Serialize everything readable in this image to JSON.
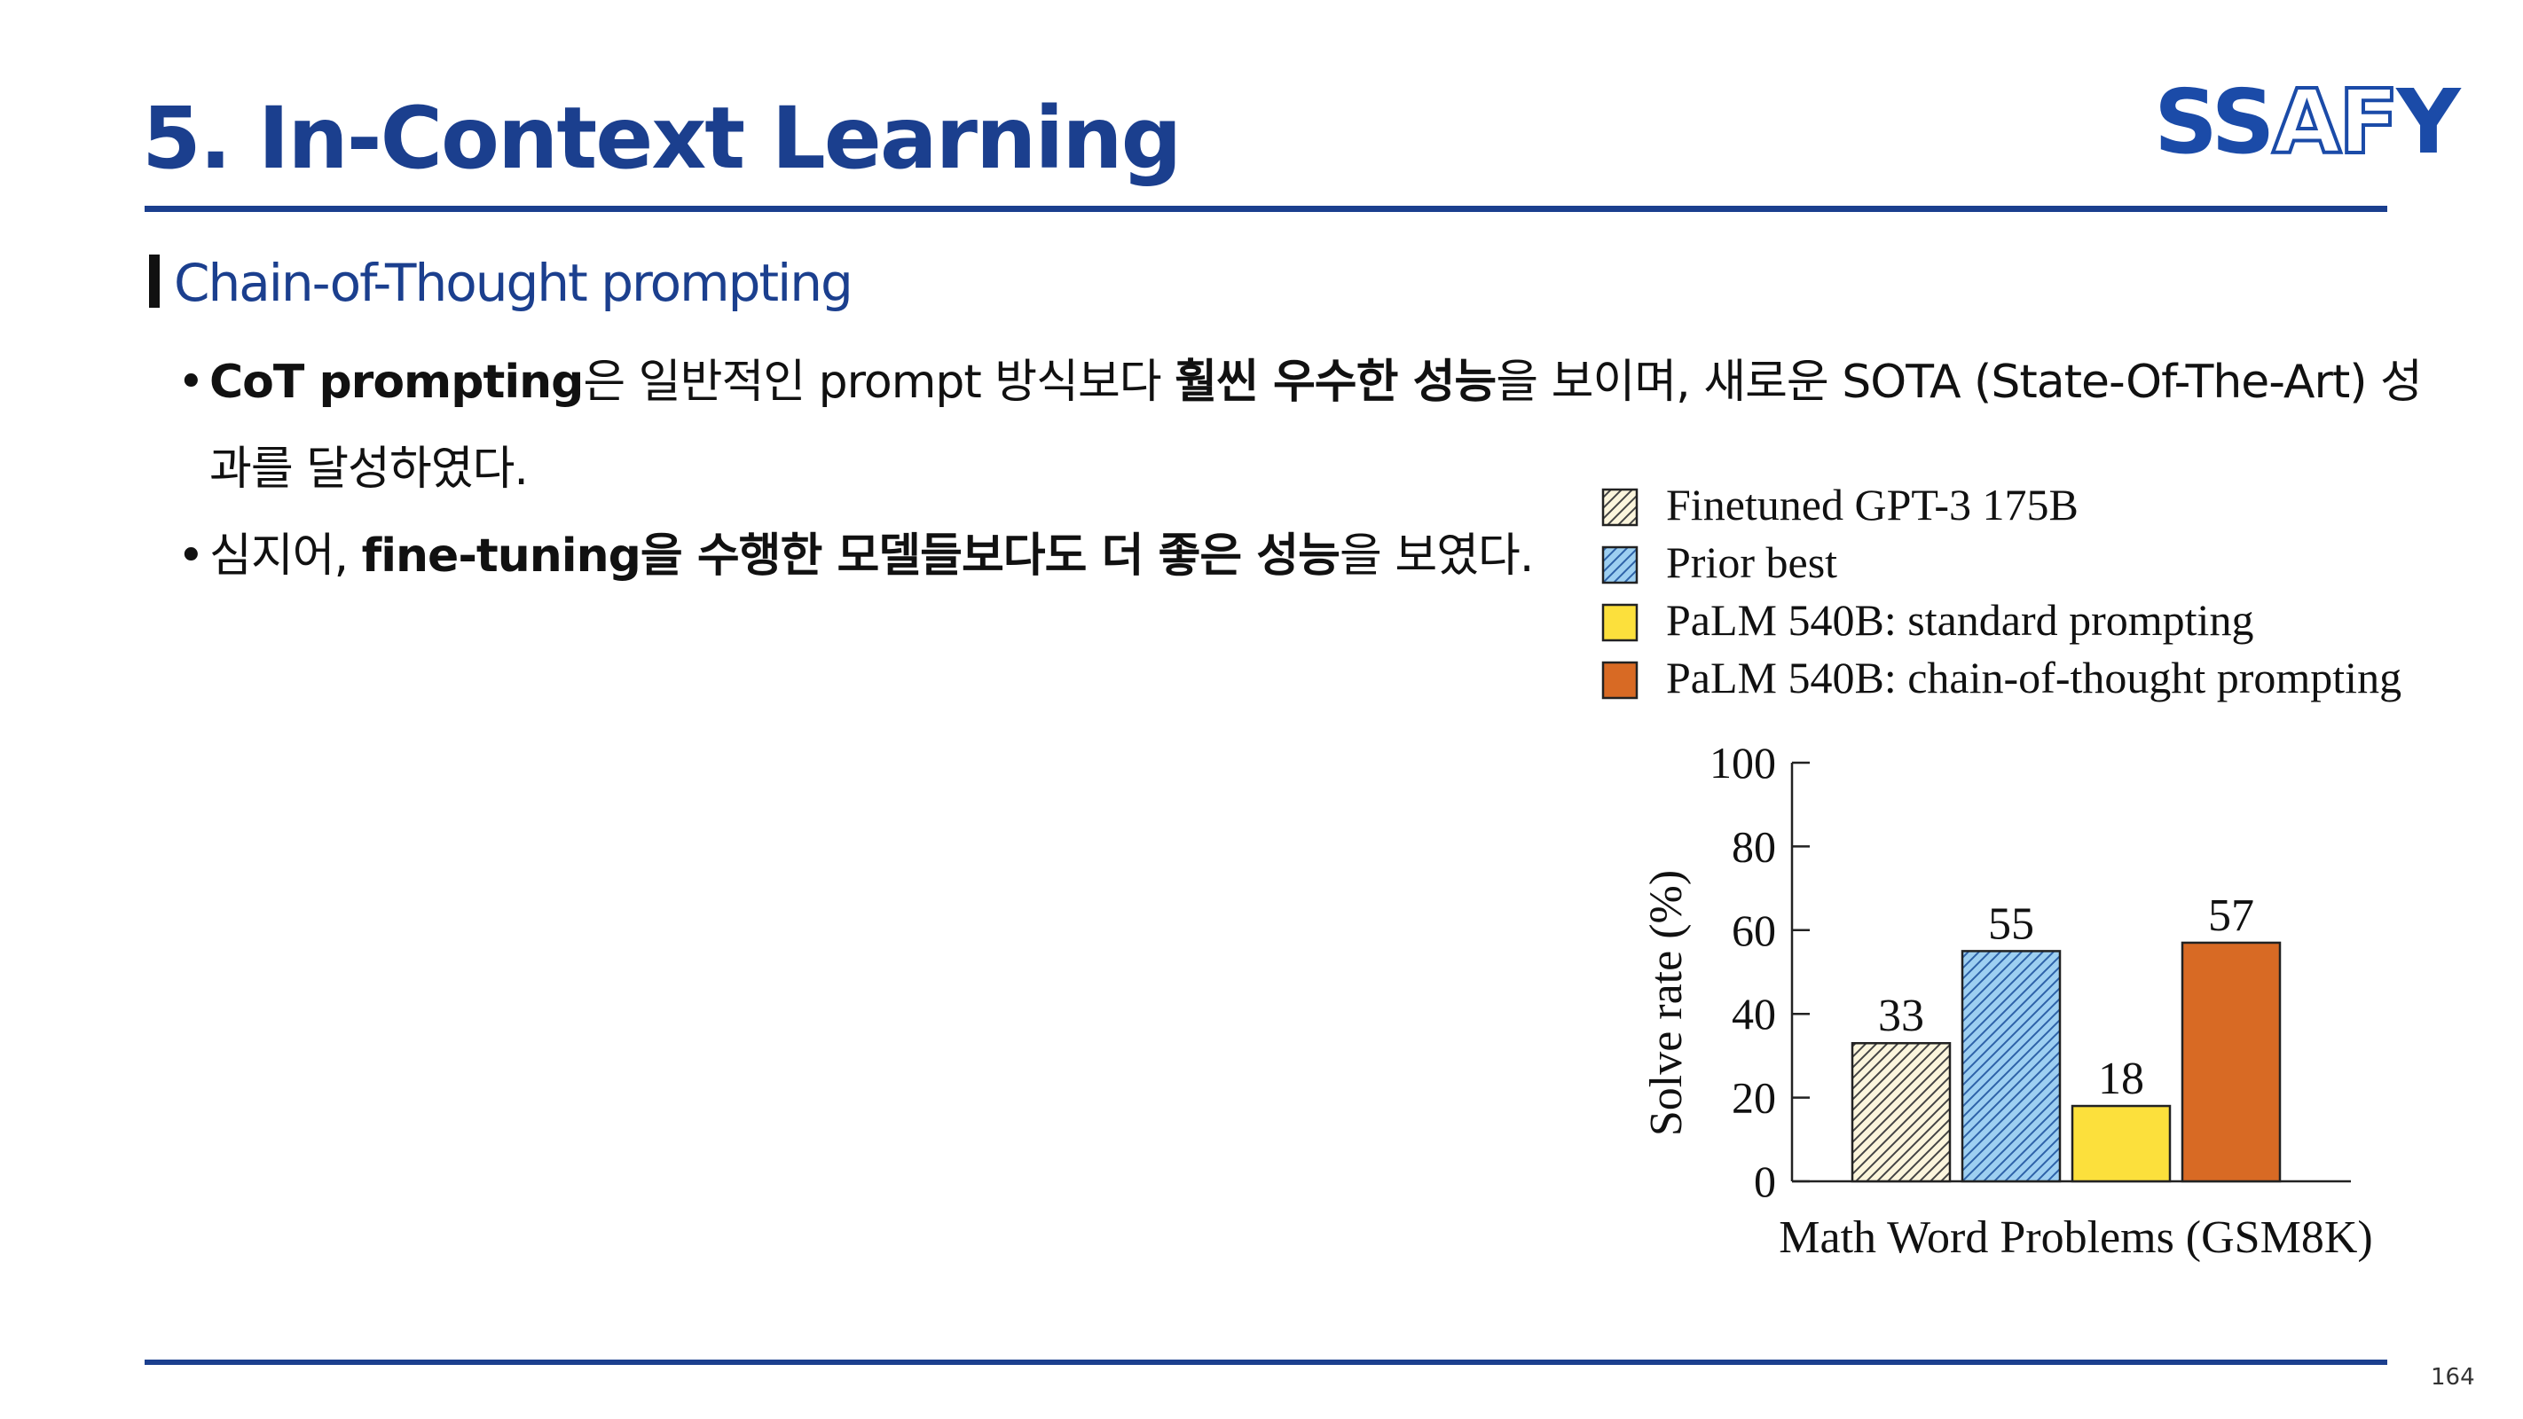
{
  "header": {
    "title": "5. In-Context Learning",
    "logo": {
      "part1": "SS",
      "part2": "AF",
      "part3": "Y"
    }
  },
  "section": {
    "heading": "Chain-of-Thought prompting"
  },
  "bullets": [
    {
      "b1": "CoT prompting",
      "t1": "은 일반적인 prompt 방식보다 ",
      "b2": "훨씬 우수한 성능",
      "t2": "을 보이며, 새로운 SOTA (State-Of-The-Art) 성과를 달성하였다."
    },
    {
      "t0": "심지어, ",
      "b1": "fine-tuning을 수행한 모델들보다도 더 좋은 성능",
      "t1": "을 보였다."
    }
  ],
  "chart_data": {
    "type": "bar",
    "categories": [
      "Math Word Problems (GSM8K)"
    ],
    "xlabel": "Math Word Problems (GSM8K)",
    "ylabel": "Solve rate (%)",
    "ylim": [
      0,
      100
    ],
    "yticks": [
      0,
      20,
      40,
      60,
      80,
      100
    ],
    "legend_position": "top",
    "series": [
      {
        "name": "Finetuned GPT-3 175B",
        "values": [
          33
        ],
        "fill": "#fbf5dc",
        "pattern": "hatch",
        "hatch_color": "#444444",
        "label": "33"
      },
      {
        "name": "Prior best",
        "values": [
          55
        ],
        "fill": "#9dcff1",
        "pattern": "hatch",
        "hatch_color": "#2d62a8",
        "label": "55"
      },
      {
        "name": "PaLM 540B: standard prompting",
        "values": [
          18
        ],
        "fill": "#fce03c",
        "pattern": "solid",
        "label": "18"
      },
      {
        "name": "PaLM 540B: chain-of-thought prompting",
        "values": [
          57
        ],
        "fill": "#d86a24",
        "pattern": "solid",
        "label": "57"
      }
    ]
  },
  "footer": {
    "page_number": "164"
  },
  "colors": {
    "brand": "#1b3f8e",
    "logo": "#1b4ba8"
  }
}
